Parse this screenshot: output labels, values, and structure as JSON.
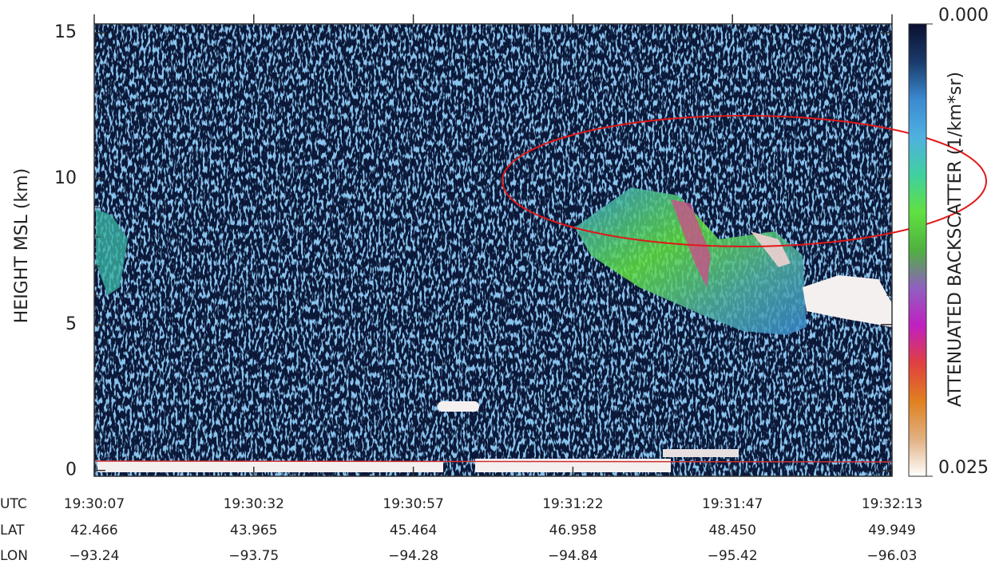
{
  "chart_data": {
    "type": "curtain",
    "y_label": "HEIGHT MSL (km)",
    "ylim": [
      -0.2,
      15.3
    ],
    "yticks": [
      0,
      5,
      10,
      15
    ],
    "yminor_ticks": [
      1,
      2,
      3,
      4,
      6,
      7,
      8,
      9,
      11,
      12,
      13,
      14
    ],
    "x_rows": [
      {
        "name": "UTC",
        "labels": [
          "19:30:07",
          "19:30:32",
          "19:30:57",
          "19:31:22",
          "19:31:47",
          "19:32:13"
        ]
      },
      {
        "name": "LAT",
        "labels": [
          42.466,
          43.965,
          45.464,
          46.958,
          {
            "value": 48.45,
            "label": "48.450"
          },
          49.949
        ]
      },
      {
        "name": "LON",
        "labels": [
          {
            "value": -93.24,
            "label": "−93.24"
          },
          {
            "value": -93.75,
            "label": "−93.75"
          },
          {
            "value": -94.28,
            "label": "−94.28"
          },
          {
            "value": -94.84,
            "label": "−94.84"
          },
          {
            "value": -95.42,
            "label": "−95.42"
          },
          {
            "value": -96.03,
            "label": "−96.03"
          }
        ]
      }
    ],
    "colorbar": {
      "label": "ATTENUATED BACKSCATTER (1/km*sr)",
      "clim": [
        0,
        0.025
      ],
      "ticks": [
        {
          "value": 0,
          "label": "0.000"
        },
        {
          "value": 0.025,
          "label": "0.025"
        }
      ],
      "colormap": [
        "#0a1030",
        "#1a3a6a",
        "#3a8ad0",
        "#50b0e0",
        "#40d0a0",
        "#60e040",
        "#50b040",
        "#9060c0",
        "#c020c0",
        "#e04040",
        "#e08020",
        "#e0b080",
        "#ffffff"
      ]
    }
  }
}
